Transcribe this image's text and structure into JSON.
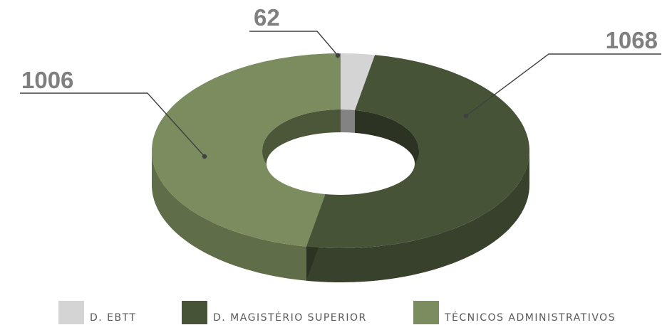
{
  "chart_data": {
    "type": "pie",
    "subtype": "3d-doughnut",
    "categories": [
      "D. EBTT",
      "D. MAGISTÉRIO SUPERIOR",
      "TÉCNICOS ADMINISTRATIVOS"
    ],
    "values": [
      62,
      1068,
      1006
    ],
    "data_labels": [
      "62",
      "1068",
      "1006"
    ],
    "colors": [
      "#d4d4d4",
      "#475337",
      "#7b8c5e"
    ],
    "legend_position": "bottom"
  }
}
